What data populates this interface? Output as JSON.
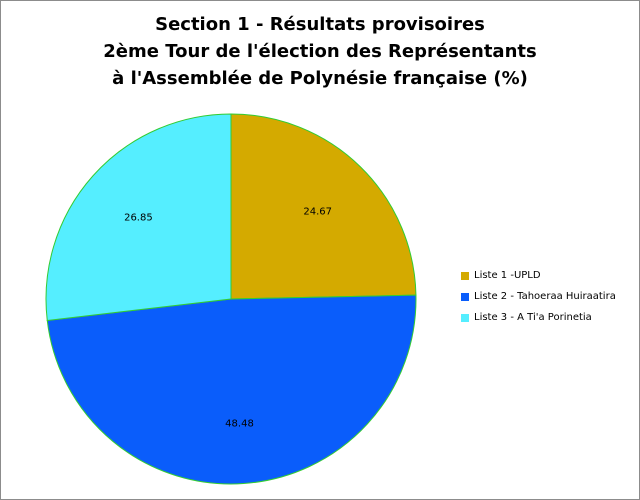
{
  "chart_data": {
    "type": "pie",
    "title": [
      "Section 1 - Résultats provisoires",
      "2ème Tour de l'élection des Représentants",
      "à l'Assemblée de Polynésie française (%)"
    ],
    "slices": [
      {
        "label": "Liste 1  -UPLD",
        "value": 24.67,
        "value_label": "24.67",
        "color": "#d4aa00"
      },
      {
        "label": "Liste 2 - Tahoeraa Huiraatira",
        "value": 48.48,
        "value_label": "48.48",
        "color": "#0a5dfb"
      },
      {
        "label": "Liste 3 - A Ti'a Porinetia",
        "value": 26.85,
        "value_label": "26.85",
        "color": "#55eeff"
      }
    ],
    "start_angle": "12 o'clock",
    "direction": "clockwise",
    "slice_border_color": "#33cc33",
    "legend_position": "right"
  }
}
